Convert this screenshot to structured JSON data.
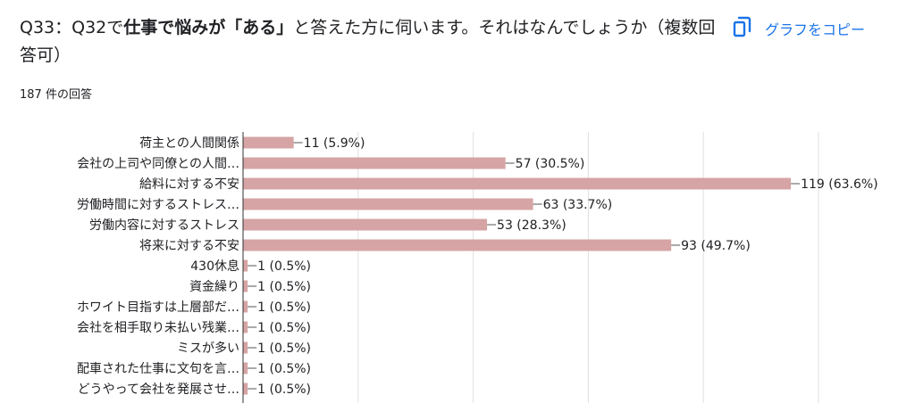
{
  "question": {
    "prefix": "Q33：Q32で",
    "bold1": "仕事で悩みが「ある」",
    "rest": "と答えた方に伺います。それはなんでしょうか（複数回答可）"
  },
  "response_count": "187 件の回答",
  "copy_button": {
    "label": "グラフをコピー",
    "icon": "copy-icon"
  },
  "colors": {
    "bar": "#d6a4a4",
    "grid": "#e0e0e0",
    "axis": "#333333",
    "accent": "#1a73e8"
  },
  "chart_data": {
    "type": "bar",
    "orientation": "horizontal",
    "grid": true,
    "xlim": [
      0,
      125
    ],
    "categories": [
      "荷主との人間関係",
      "会社の上司や同僚との人間…",
      "給料に対する不安",
      "労働時間に対するストレス…",
      "労働内容に対するストレス",
      "将来に対する不安",
      "430休息",
      "資金繰り",
      "ホワイト目指すは上層部だ…",
      "会社を相手取り未払い残業…",
      "ミスが多い",
      "配車された仕事に文句を言…",
      "どうやって会社を発展させ…"
    ],
    "values": [
      11,
      57,
      119,
      63,
      53,
      93,
      1,
      1,
      1,
      1,
      1,
      1,
      1
    ],
    "data_labels": [
      "11 (5.9%)",
      "57 (30.5%)",
      "119 (63.6%)",
      "63 (33.7%)",
      "53 (28.3%)",
      "93 (49.7%)",
      "1 (0.5%)",
      "1 (0.5%)",
      "1 (0.5%)",
      "1 (0.5%)",
      "1 (0.5%)",
      "1 (0.5%)",
      "1 (0.5%)"
    ]
  }
}
